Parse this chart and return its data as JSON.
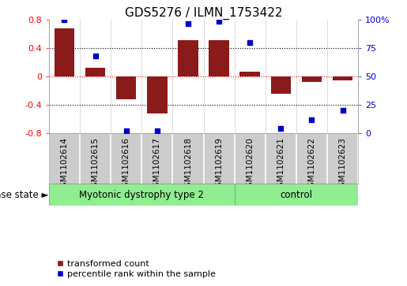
{
  "title": "GDS5276 / ILMN_1753422",
  "samples": [
    "GSM1102614",
    "GSM1102615",
    "GSM1102616",
    "GSM1102617",
    "GSM1102618",
    "GSM1102619",
    "GSM1102620",
    "GSM1102621",
    "GSM1102622",
    "GSM1102623"
  ],
  "transformed_count": [
    0.68,
    0.12,
    -0.32,
    -0.52,
    0.52,
    0.52,
    0.07,
    -0.24,
    -0.08,
    -0.05
  ],
  "percentile_rank": [
    100,
    68,
    2,
    2,
    97,
    99,
    80,
    4,
    12,
    20
  ],
  "ylim_left": [
    -0.8,
    0.8
  ],
  "ylim_right": [
    0,
    100
  ],
  "yticks_left": [
    -0.8,
    -0.4,
    0.0,
    0.4,
    0.8
  ],
  "ytick_labels_left": [
    "-0.8",
    "-0.4",
    "0",
    "0.4",
    "0.8"
  ],
  "yticks_right": [
    0,
    25,
    50,
    75,
    100
  ],
  "ytick_labels_right": [
    "0",
    "25",
    "50",
    "75",
    "100%"
  ],
  "hlines": [
    -0.4,
    0.0,
    0.4
  ],
  "bar_color": "#8B1A1A",
  "dot_color": "#0000CD",
  "bar_width": 0.65,
  "disease_groups": [
    {
      "label": "Myotonic dystrophy type 2",
      "start": 0,
      "end": 6,
      "color": "#90EE90"
    },
    {
      "label": "control",
      "start": 6,
      "end": 10,
      "color": "#90EE90"
    }
  ],
  "disease_state_label": "disease state ►",
  "legend_items": [
    {
      "color": "#8B1A1A",
      "label": "transformed count"
    },
    {
      "color": "#0000CD",
      "label": "percentile rank within the sample"
    }
  ],
  "background_color": "#ffffff",
  "sample_box_color": "#cccccc",
  "title_fontsize": 11,
  "axis_fontsize": 8,
  "label_fontsize": 7.5,
  "legend_fontsize": 8,
  "disease_fontsize": 8.5
}
